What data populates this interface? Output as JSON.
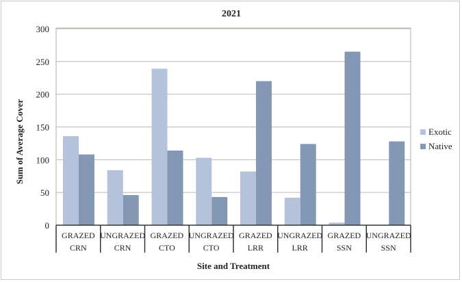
{
  "chart_data": {
    "type": "bar",
    "title": "2021",
    "xlabel": "Site and Treatment",
    "ylabel": "Sum of Average Cover",
    "ylim": [
      0,
      300
    ],
    "yticks": [
      0,
      50,
      100,
      150,
      200,
      250,
      300
    ],
    "grid": true,
    "legend_position": "right",
    "categories": [
      {
        "treatment": "GRAZED",
        "site": "CRN"
      },
      {
        "treatment": "UNGRAZED",
        "site": "CRN"
      },
      {
        "treatment": "GRAZED",
        "site": "CTO"
      },
      {
        "treatment": "UNGRAZED",
        "site": "CTO"
      },
      {
        "treatment": "GRAZED",
        "site": "LRR"
      },
      {
        "treatment": "UNGRAZED",
        "site": "LRR"
      },
      {
        "treatment": "GRAZED",
        "site": "SSN"
      },
      {
        "treatment": "UNGRAZED",
        "site": "SSN"
      }
    ],
    "series": [
      {
        "name": "Exotic",
        "color": "#b4c3db",
        "values": [
          136,
          84,
          239,
          103,
          82,
          42,
          4,
          0
        ]
      },
      {
        "name": "Native",
        "color": "#8497b4",
        "values": [
          108,
          46,
          114,
          43,
          220,
          124,
          265,
          128
        ]
      }
    ]
  }
}
